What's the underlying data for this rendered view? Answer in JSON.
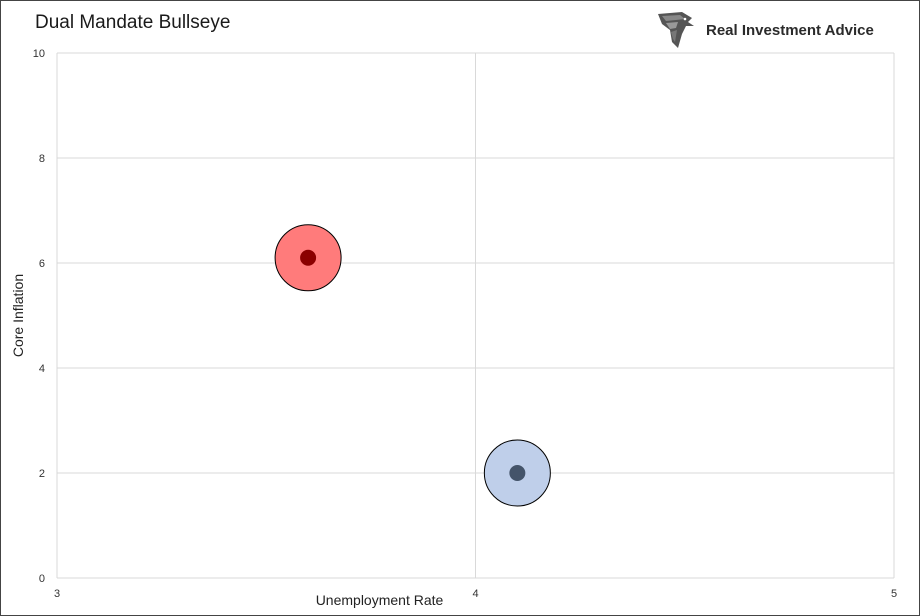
{
  "title": "Dual Mandate Bullseye",
  "logo": {
    "text": "Real Investment Advice",
    "icon": "eagle-head-icon"
  },
  "colors": {
    "grid": "#d9d9d9",
    "red_fill": "#ff7b7b",
    "red_center": "#8b0000",
    "blue_fill": "#bfcfea",
    "blue_center": "#44546a",
    "outline": "#000000"
  },
  "chart_data": {
    "type": "scatter",
    "title": "Dual Mandate Bullseye",
    "xlabel": "Unemployment Rate",
    "ylabel": "Core Inflation",
    "xlim": [
      3,
      5
    ],
    "ylim": [
      0,
      10
    ],
    "x_ticks": [
      3,
      4,
      5
    ],
    "y_ticks": [
      0,
      2,
      4,
      6,
      8,
      10
    ],
    "grid": true,
    "legend": "none",
    "series": [
      {
        "x": 3.6,
        "y": 6.1,
        "color": "#ff7b7b",
        "center_color": "#8b0000"
      },
      {
        "x": 4.1,
        "y": 2.0,
        "color": "#bfcfea",
        "center_color": "#44546a"
      }
    ]
  }
}
